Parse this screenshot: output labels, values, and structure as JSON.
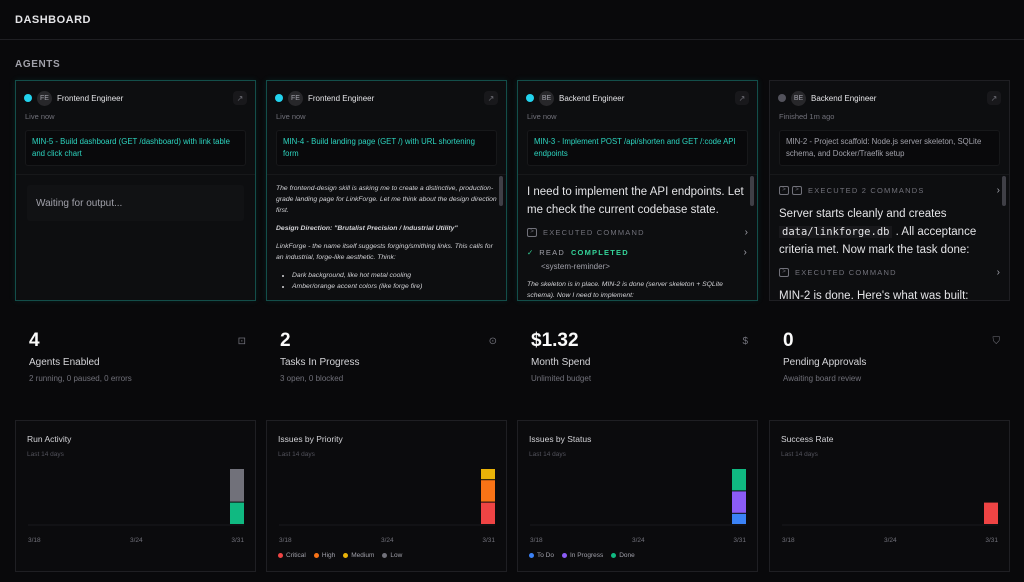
{
  "header": {
    "title": "DASHBOARD"
  },
  "agents": {
    "section_title": "AGENTS",
    "cards": [
      {
        "initials": "FE",
        "name": "Frontend Engineer",
        "status": "Live now",
        "live": true,
        "task": "MIN-5 - Build dashboard (GET /dashboard) with link table and click chart",
        "output": "Waiting for output..."
      },
      {
        "initials": "FE",
        "name": "Frontend Engineer",
        "status": "Live now",
        "live": true,
        "task": "MIN-4 - Build landing page (GET /) with URL shortening form",
        "p1": "The frontend-design skill is asking me to create a distinctive, production-grade landing page for LinkForge. Let me think about the design direction first.",
        "p2": "Design Direction: \"Brutalist Precision / Industrial Utility\"",
        "p3": "LinkForge - the name itself suggests forging/smithing links. This calls for an industrial, forge-like aesthetic. Think:",
        "bullets": [
          "Dark background, like hot metal cooling",
          "Amber/orange accent colors (like forge fire)"
        ]
      },
      {
        "initials": "BE",
        "name": "Backend Engineer",
        "status": "Live now",
        "live": true,
        "task": "MIN-3 - Implement POST /api/shorten and GET /:code API endpoints",
        "msg": "I need to implement the API endpoints. Let me check the current codebase state.",
        "exec": "EXECUTED COMMAND",
        "read": "READ",
        "read_status": "COMPLETED",
        "reminder": "<system-reminder>",
        "tail": "The skeleton is in place. MIN-2 is done (server skeleton + SQLite schema). Now I need to implement:"
      },
      {
        "initials": "BE",
        "name": "Backend Engineer",
        "status": "Finished 1m ago",
        "live": false,
        "task": "MIN-2 - Project scaffold: Node.js server skeleton, SQLite schema, and Docker/Traefik setup",
        "exec2": "EXECUTED 2 COMMANDS",
        "msg_a": "Server starts cleanly and creates ",
        "msg_code": "data/linkforge.db",
        "msg_b": " . All acceptance criteria met. Now mark the task done:",
        "exec": "EXECUTED COMMAND",
        "tail": "MIN-2 is done. Here's what was built:"
      }
    ]
  },
  "stats": [
    {
      "value": "4",
      "label": "Agents Enabled",
      "sub": "2 running, 0 paused, 0 errors",
      "icon": "bot-icon"
    },
    {
      "value": "2",
      "label": "Tasks In Progress",
      "sub": "3 open, 0 blocked",
      "icon": "circle-dot-icon"
    },
    {
      "value": "$1.32",
      "label": "Month Spend",
      "sub": "Unlimited budget",
      "icon": "dollar-icon"
    },
    {
      "value": "0",
      "label": "Pending Approvals",
      "sub": "Awaiting board review",
      "icon": "shield-icon"
    }
  ],
  "chart_data": [
    {
      "type": "bar",
      "title": "Run Activity",
      "subtitle": "Last 14 days",
      "tick_labels": [
        "3/18",
        "3/24",
        "3/31"
      ],
      "stacked": true,
      "categories": [
        "3/31"
      ],
      "series": [
        {
          "values": [
            2
          ],
          "color": "#10b981"
        },
        {
          "values": [
            3
          ],
          "color": "#71717a"
        }
      ],
      "ylim": [
        0,
        5
      ]
    },
    {
      "type": "bar",
      "title": "Issues by Priority",
      "subtitle": "Last 14 days",
      "tick_labels": [
        "3/18",
        "3/24",
        "3/31"
      ],
      "stacked": true,
      "categories": [
        "3/31"
      ],
      "series": [
        {
          "name": "Critical",
          "values": [
            2
          ],
          "color": "#ef4444"
        },
        {
          "name": "High",
          "values": [
            2
          ],
          "color": "#f97316"
        },
        {
          "name": "Medium",
          "values": [
            1
          ],
          "color": "#eab308"
        },
        {
          "name": "Low",
          "values": [
            0
          ],
          "color": "#71717a"
        }
      ],
      "ylim": [
        0,
        5
      ],
      "legend": "bottom"
    },
    {
      "type": "bar",
      "title": "Issues by Status",
      "subtitle": "Last 14 days",
      "tick_labels": [
        "3/18",
        "3/24",
        "3/31"
      ],
      "stacked": true,
      "categories": [
        "3/31"
      ],
      "series": [
        {
          "name": "To Do",
          "values": [
            1
          ],
          "color": "#3b82f6"
        },
        {
          "name": "In Progress",
          "values": [
            2
          ],
          "color": "#8b5cf6"
        },
        {
          "name": "Done",
          "values": [
            2
          ],
          "color": "#10b981"
        }
      ],
      "ylim": [
        0,
        5
      ],
      "legend": "bottom"
    },
    {
      "type": "bar",
      "title": "Success Rate",
      "subtitle": "Last 14 days",
      "tick_labels": [
        "3/18",
        "3/24",
        "3/31"
      ],
      "stacked": true,
      "categories": [
        "3/31"
      ],
      "series": [
        {
          "values": [
            40
          ],
          "color": "#ef4444"
        }
      ],
      "ylim": [
        0,
        100
      ]
    }
  ]
}
